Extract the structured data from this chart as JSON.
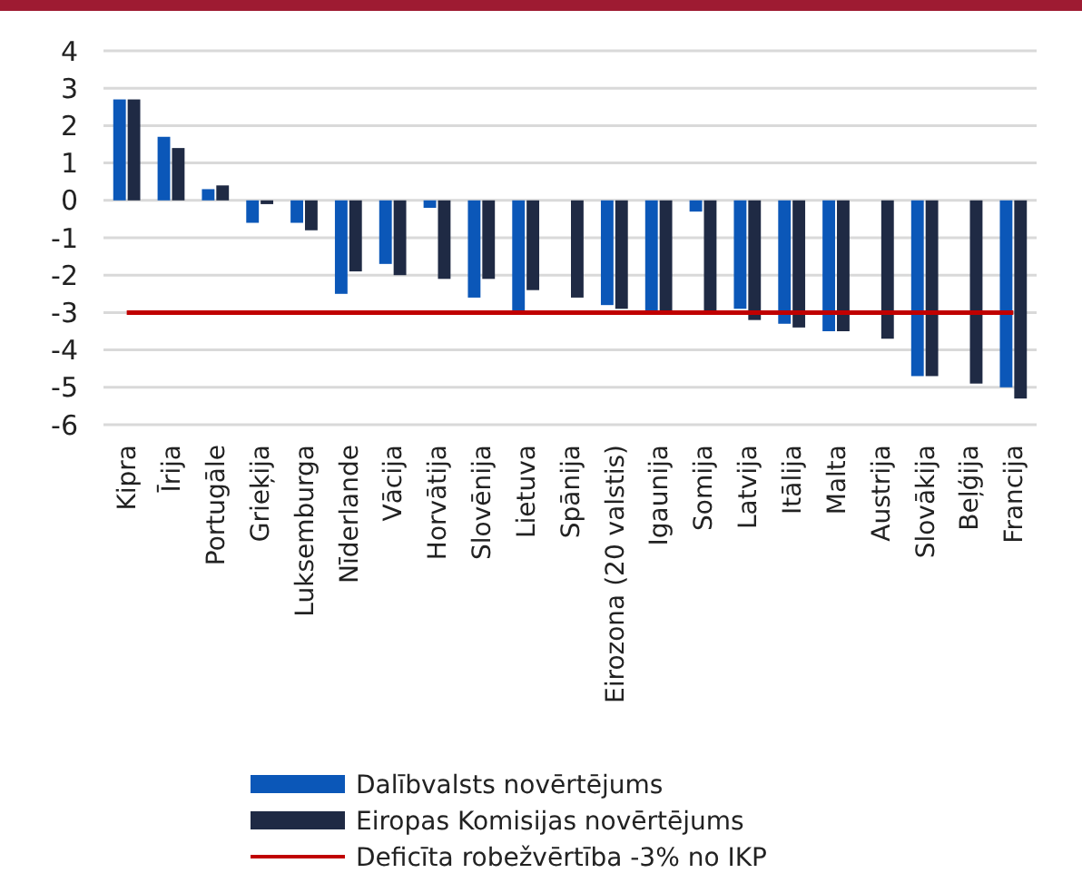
{
  "chart_data": {
    "type": "bar",
    "categories": [
      "Kipra",
      "Īrija",
      "Portugāle",
      "Grieķija",
      "Luksemburga",
      "Nīderlande",
      "Vācija",
      "Horvātija",
      "Slovēnija",
      "Lietuva",
      "Spānija",
      "Eirozona (20 valstis)",
      "Igaunija",
      "Somija",
      "Latvija",
      "Itālija",
      "Malta",
      "Austrija",
      "Slovākija",
      "Beļģija",
      "Francija"
    ],
    "series": [
      {
        "name": "Dalībvalsts novērtējums",
        "color": "#0b57b8",
        "values": [
          2.7,
          1.7,
          0.3,
          -0.6,
          -0.6,
          -2.5,
          -1.7,
          -0.2,
          -2.6,
          -3.0,
          null,
          -2.8,
          -3.0,
          -0.3,
          -2.9,
          -3.3,
          -3.5,
          null,
          -4.7,
          null,
          -5.0
        ]
      },
      {
        "name": "Eiropas Komisijas novērtējums",
        "color": "#1f2a44",
        "values": [
          2.7,
          1.4,
          0.4,
          -0.1,
          -0.8,
          -1.9,
          -2.0,
          -2.1,
          -2.1,
          -2.4,
          -2.6,
          -2.9,
          -3.0,
          -3.0,
          -3.2,
          -3.4,
          -3.5,
          -3.7,
          -4.7,
          -4.9,
          -5.3
        ]
      },
      {
        "name": "Deficīta robežvērtība -3% no IKP",
        "type": "line",
        "color": "#c00000",
        "values": [
          -3,
          -3,
          -3,
          -3,
          -3,
          -3,
          -3,
          -3,
          -3,
          -3,
          -3,
          -3,
          -3,
          -3,
          -3,
          -3,
          -3,
          -3,
          -3,
          -3,
          -3
        ]
      }
    ],
    "ylim": [
      -6,
      4
    ],
    "yticks": [
      -6,
      -5,
      -4,
      -3,
      -2,
      -1,
      0,
      1,
      2,
      3,
      4
    ],
    "grid": "y",
    "legend": "bottom"
  }
}
